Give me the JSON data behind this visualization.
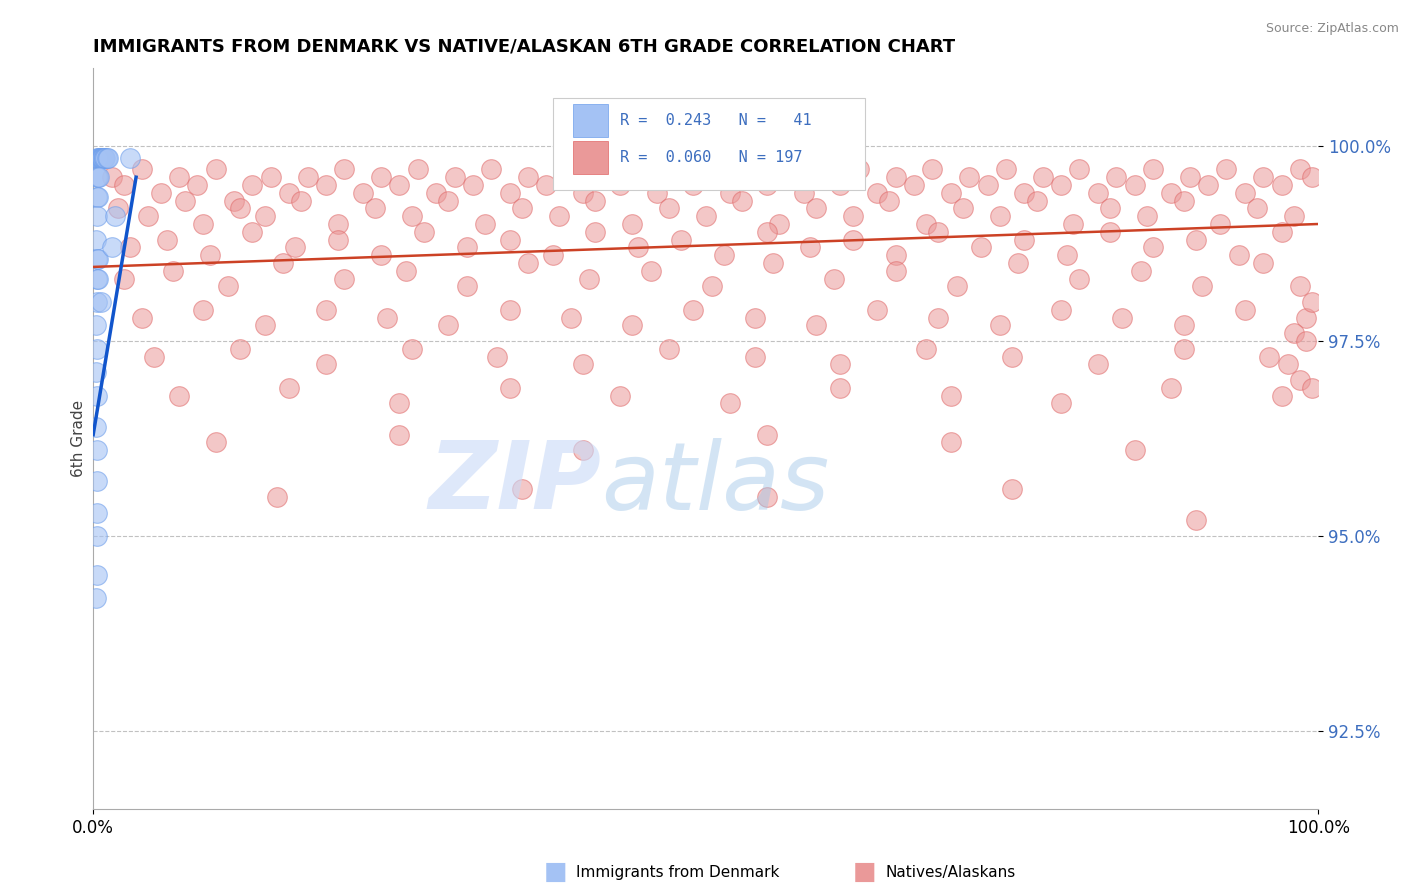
{
  "title": "IMMIGRANTS FROM DENMARK VS NATIVE/ALASKAN 6TH GRADE CORRELATION CHART",
  "source": "Source: ZipAtlas.com",
  "ylabel": "6th Grade",
  "xlim": [
    0.0,
    100.0
  ],
  "ylim": [
    91.5,
    101.0
  ],
  "yticks": [
    92.5,
    95.0,
    97.5,
    100.0
  ],
  "ytick_labels": [
    "92.5%",
    "95.0%",
    "97.5%",
    "100.0%"
  ],
  "xticks": [
    0.0,
    100.0
  ],
  "xtick_labels": [
    "0.0%",
    "100.0%"
  ],
  "blue_color": "#a4c2f4",
  "blue_edge_color": "#6d9eeb",
  "pink_color": "#ea9999",
  "pink_edge_color": "#e06666",
  "trend_blue_color": "#1155cc",
  "trend_pink_color": "#cc4125",
  "watermark_zip": "ZIP",
  "watermark_atlas": "atlas",
  "blue_trend_x": [
    0.0,
    3.5
  ],
  "blue_trend_y": [
    96.3,
    99.6
  ],
  "pink_trend_x": [
    0.0,
    100.0
  ],
  "pink_trend_y": [
    98.45,
    99.0
  ],
  "blue_dots": [
    [
      0.3,
      99.85
    ],
    [
      0.4,
      99.85
    ],
    [
      0.5,
      99.85
    ],
    [
      0.55,
      99.85
    ],
    [
      0.6,
      99.85
    ],
    [
      0.65,
      99.85
    ],
    [
      0.7,
      99.85
    ],
    [
      0.75,
      99.85
    ],
    [
      0.8,
      99.85
    ],
    [
      0.85,
      99.85
    ],
    [
      0.9,
      99.85
    ],
    [
      1.0,
      99.85
    ],
    [
      1.1,
      99.85
    ],
    [
      1.2,
      99.85
    ],
    [
      0.3,
      99.6
    ],
    [
      0.4,
      99.6
    ],
    [
      0.5,
      99.6
    ],
    [
      0.3,
      99.35
    ],
    [
      0.4,
      99.35
    ],
    [
      0.3,
      99.1
    ],
    [
      0.25,
      98.8
    ],
    [
      0.3,
      98.55
    ],
    [
      0.4,
      98.55
    ],
    [
      0.3,
      98.3
    ],
    [
      0.4,
      98.3
    ],
    [
      0.3,
      98.0
    ],
    [
      0.25,
      97.7
    ],
    [
      0.3,
      97.4
    ],
    [
      0.25,
      97.1
    ],
    [
      0.3,
      96.8
    ],
    [
      0.25,
      96.4
    ],
    [
      0.3,
      96.1
    ],
    [
      0.35,
      95.7
    ],
    [
      0.3,
      95.3
    ],
    [
      0.3,
      95.0
    ],
    [
      3.0,
      99.85
    ],
    [
      0.3,
      94.5
    ],
    [
      0.25,
      94.2
    ],
    [
      1.8,
      99.1
    ],
    [
      0.6,
      98.0
    ],
    [
      1.5,
      98.7
    ]
  ],
  "pink_dots": [
    [
      1.5,
      99.6
    ],
    [
      2.5,
      99.5
    ],
    [
      4.0,
      99.7
    ],
    [
      5.5,
      99.4
    ],
    [
      7.0,
      99.6
    ],
    [
      8.5,
      99.5
    ],
    [
      10.0,
      99.7
    ],
    [
      11.5,
      99.3
    ],
    [
      13.0,
      99.5
    ],
    [
      14.5,
      99.6
    ],
    [
      16.0,
      99.4
    ],
    [
      17.5,
      99.6
    ],
    [
      19.0,
      99.5
    ],
    [
      20.5,
      99.7
    ],
    [
      22.0,
      99.4
    ],
    [
      23.5,
      99.6
    ],
    [
      25.0,
      99.5
    ],
    [
      26.5,
      99.7
    ],
    [
      28.0,
      99.4
    ],
    [
      29.5,
      99.6
    ],
    [
      31.0,
      99.5
    ],
    [
      32.5,
      99.7
    ],
    [
      34.0,
      99.4
    ],
    [
      35.5,
      99.6
    ],
    [
      37.0,
      99.5
    ],
    [
      38.5,
      99.7
    ],
    [
      40.0,
      99.4
    ],
    [
      41.5,
      99.6
    ],
    [
      43.0,
      99.5
    ],
    [
      44.5,
      99.7
    ],
    [
      46.0,
      99.4
    ],
    [
      47.5,
      99.6
    ],
    [
      49.0,
      99.5
    ],
    [
      50.5,
      99.7
    ],
    [
      52.0,
      99.4
    ],
    [
      53.5,
      99.6
    ],
    [
      55.0,
      99.5
    ],
    [
      56.5,
      99.7
    ],
    [
      58.0,
      99.4
    ],
    [
      59.5,
      99.6
    ],
    [
      61.0,
      99.5
    ],
    [
      62.5,
      99.7
    ],
    [
      64.0,
      99.4
    ],
    [
      65.5,
      99.6
    ],
    [
      67.0,
      99.5
    ],
    [
      68.5,
      99.7
    ],
    [
      70.0,
      99.4
    ],
    [
      71.5,
      99.6
    ],
    [
      73.0,
      99.5
    ],
    [
      74.5,
      99.7
    ],
    [
      76.0,
      99.4
    ],
    [
      77.5,
      99.6
    ],
    [
      79.0,
      99.5
    ],
    [
      80.5,
      99.7
    ],
    [
      82.0,
      99.4
    ],
    [
      83.5,
      99.6
    ],
    [
      85.0,
      99.5
    ],
    [
      86.5,
      99.7
    ],
    [
      88.0,
      99.4
    ],
    [
      89.5,
      99.6
    ],
    [
      91.0,
      99.5
    ],
    [
      92.5,
      99.7
    ],
    [
      94.0,
      99.4
    ],
    [
      95.5,
      99.6
    ],
    [
      97.0,
      99.5
    ],
    [
      98.5,
      99.7
    ],
    [
      99.5,
      99.6
    ],
    [
      2.0,
      99.2
    ],
    [
      4.5,
      99.1
    ],
    [
      7.5,
      99.3
    ],
    [
      9.0,
      99.0
    ],
    [
      12.0,
      99.2
    ],
    [
      14.0,
      99.1
    ],
    [
      17.0,
      99.3
    ],
    [
      20.0,
      99.0
    ],
    [
      23.0,
      99.2
    ],
    [
      26.0,
      99.1
    ],
    [
      29.0,
      99.3
    ],
    [
      32.0,
      99.0
    ],
    [
      35.0,
      99.2
    ],
    [
      38.0,
      99.1
    ],
    [
      41.0,
      99.3
    ],
    [
      44.0,
      99.0
    ],
    [
      47.0,
      99.2
    ],
    [
      50.0,
      99.1
    ],
    [
      53.0,
      99.3
    ],
    [
      56.0,
      99.0
    ],
    [
      59.0,
      99.2
    ],
    [
      62.0,
      99.1
    ],
    [
      65.0,
      99.3
    ],
    [
      68.0,
      99.0
    ],
    [
      71.0,
      99.2
    ],
    [
      74.0,
      99.1
    ],
    [
      77.0,
      99.3
    ],
    [
      80.0,
      99.0
    ],
    [
      83.0,
      99.2
    ],
    [
      86.0,
      99.1
    ],
    [
      89.0,
      99.3
    ],
    [
      92.0,
      99.0
    ],
    [
      95.0,
      99.2
    ],
    [
      98.0,
      99.1
    ],
    [
      3.0,
      98.7
    ],
    [
      6.0,
      98.8
    ],
    [
      9.5,
      98.6
    ],
    [
      13.0,
      98.9
    ],
    [
      16.5,
      98.7
    ],
    [
      20.0,
      98.8
    ],
    [
      23.5,
      98.6
    ],
    [
      27.0,
      98.9
    ],
    [
      30.5,
      98.7
    ],
    [
      34.0,
      98.8
    ],
    [
      37.5,
      98.6
    ],
    [
      41.0,
      98.9
    ],
    [
      44.5,
      98.7
    ],
    [
      48.0,
      98.8
    ],
    [
      51.5,
      98.6
    ],
    [
      55.0,
      98.9
    ],
    [
      58.5,
      98.7
    ],
    [
      62.0,
      98.8
    ],
    [
      65.5,
      98.6
    ],
    [
      69.0,
      98.9
    ],
    [
      72.5,
      98.7
    ],
    [
      76.0,
      98.8
    ],
    [
      79.5,
      98.6
    ],
    [
      83.0,
      98.9
    ],
    [
      86.5,
      98.7
    ],
    [
      90.0,
      98.8
    ],
    [
      93.5,
      98.6
    ],
    [
      97.0,
      98.9
    ],
    [
      2.5,
      98.3
    ],
    [
      6.5,
      98.4
    ],
    [
      11.0,
      98.2
    ],
    [
      15.5,
      98.5
    ],
    [
      20.5,
      98.3
    ],
    [
      25.5,
      98.4
    ],
    [
      30.5,
      98.2
    ],
    [
      35.5,
      98.5
    ],
    [
      40.5,
      98.3
    ],
    [
      45.5,
      98.4
    ],
    [
      50.5,
      98.2
    ],
    [
      55.5,
      98.5
    ],
    [
      60.5,
      98.3
    ],
    [
      65.5,
      98.4
    ],
    [
      70.5,
      98.2
    ],
    [
      75.5,
      98.5
    ],
    [
      80.5,
      98.3
    ],
    [
      85.5,
      98.4
    ],
    [
      90.5,
      98.2
    ],
    [
      95.5,
      98.5
    ],
    [
      4.0,
      97.8
    ],
    [
      9.0,
      97.9
    ],
    [
      14.0,
      97.7
    ],
    [
      19.0,
      97.9
    ],
    [
      24.0,
      97.8
    ],
    [
      29.0,
      97.7
    ],
    [
      34.0,
      97.9
    ],
    [
      39.0,
      97.8
    ],
    [
      44.0,
      97.7
    ],
    [
      49.0,
      97.9
    ],
    [
      54.0,
      97.8
    ],
    [
      59.0,
      97.7
    ],
    [
      64.0,
      97.9
    ],
    [
      69.0,
      97.8
    ],
    [
      74.0,
      97.7
    ],
    [
      79.0,
      97.9
    ],
    [
      84.0,
      97.8
    ],
    [
      89.0,
      97.7
    ],
    [
      94.0,
      97.9
    ],
    [
      99.0,
      97.8
    ],
    [
      5.0,
      97.3
    ],
    [
      12.0,
      97.4
    ],
    [
      19.0,
      97.2
    ],
    [
      26.0,
      97.4
    ],
    [
      33.0,
      97.3
    ],
    [
      40.0,
      97.2
    ],
    [
      47.0,
      97.4
    ],
    [
      54.0,
      97.3
    ],
    [
      61.0,
      97.2
    ],
    [
      68.0,
      97.4
    ],
    [
      75.0,
      97.3
    ],
    [
      82.0,
      97.2
    ],
    [
      89.0,
      97.4
    ],
    [
      96.0,
      97.3
    ],
    [
      7.0,
      96.8
    ],
    [
      16.0,
      96.9
    ],
    [
      25.0,
      96.7
    ],
    [
      34.0,
      96.9
    ],
    [
      43.0,
      96.8
    ],
    [
      52.0,
      96.7
    ],
    [
      61.0,
      96.9
    ],
    [
      70.0,
      96.8
    ],
    [
      79.0,
      96.7
    ],
    [
      88.0,
      96.9
    ],
    [
      97.0,
      96.8
    ],
    [
      10.0,
      96.2
    ],
    [
      25.0,
      96.3
    ],
    [
      40.0,
      96.1
    ],
    [
      55.0,
      96.3
    ],
    [
      70.0,
      96.2
    ],
    [
      85.0,
      96.1
    ],
    [
      15.0,
      95.5
    ],
    [
      35.0,
      95.6
    ],
    [
      55.0,
      95.5
    ],
    [
      75.0,
      95.6
    ],
    [
      90.0,
      95.2
    ],
    [
      97.5,
      97.2
    ],
    [
      98.5,
      97.0
    ],
    [
      99.5,
      96.9
    ],
    [
      98.0,
      97.6
    ],
    [
      99.0,
      97.5
    ],
    [
      98.5,
      98.2
    ],
    [
      99.5,
      98.0
    ]
  ]
}
